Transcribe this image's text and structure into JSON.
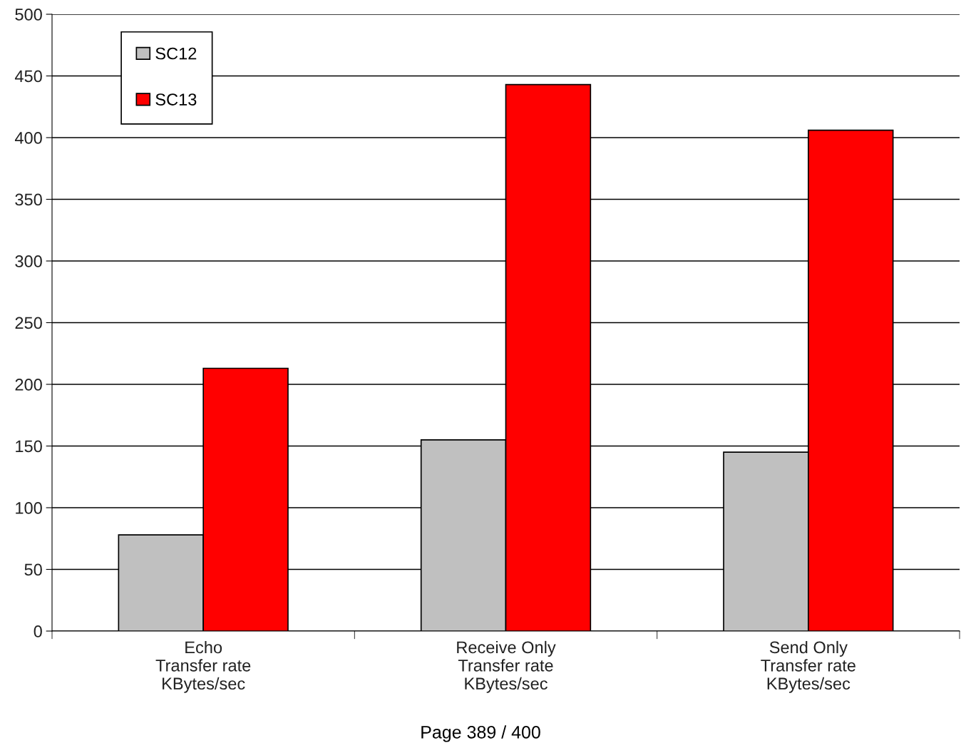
{
  "chart_data": {
    "type": "bar",
    "categories": [
      "Echo\nTransfer rate\nKBytes/sec",
      "Receive Only\nTransfer rate\nKBytes/sec",
      "Send Only\nTransfer rate\nKBytes/sec"
    ],
    "series": [
      {
        "name": "SC12",
        "color": "#c0c0c0",
        "values": [
          78,
          155,
          145
        ]
      },
      {
        "name": "SC13",
        "color": "#ff0000",
        "values": [
          213,
          443,
          406
        ]
      }
    ],
    "ylim": [
      0,
      500
    ],
    "yticks": [
      0,
      50,
      100,
      150,
      200,
      250,
      300,
      350,
      400,
      450,
      500
    ],
    "grid": "y",
    "legend": "top left",
    "annotations": [
      "Page 389 / 400"
    ]
  }
}
